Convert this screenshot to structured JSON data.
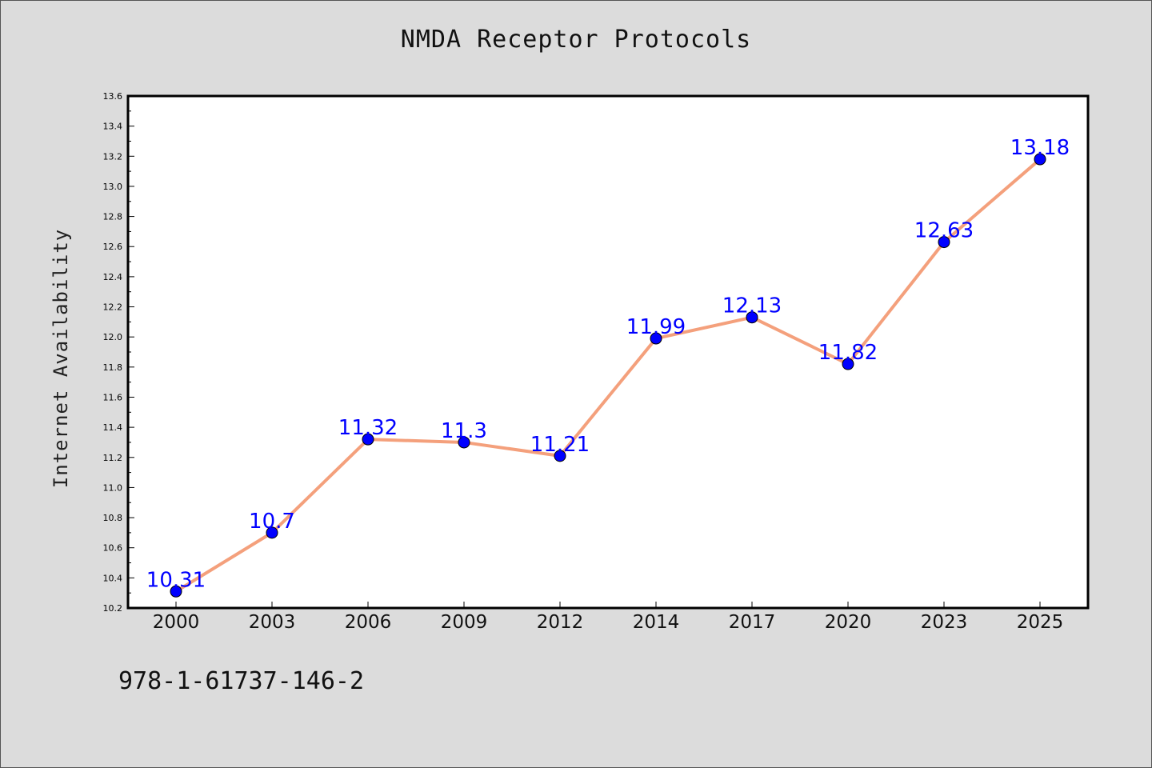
{
  "chart_data": {
    "type": "line",
    "title": "NMDA Receptor Protocols",
    "xlabel": "",
    "ylabel": "Internet Availability",
    "categories": [
      "2000",
      "2003",
      "2006",
      "2009",
      "2012",
      "2014",
      "2017",
      "2020",
      "2023",
      "2025"
    ],
    "series": [
      {
        "values": [
          10.31,
          10.7,
          11.32,
          11.3,
          11.21,
          11.99,
          12.13,
          11.82,
          12.63,
          13.18
        ]
      }
    ],
    "data_labels": [
      "10.31",
      "10.7",
      "11.32",
      "11.3",
      "11.21",
      "11.99",
      "12.13",
      "11.82",
      "12.63",
      "13.18"
    ],
    "ylim": [
      10.2,
      13.6
    ],
    "yticks": [
      "10.2",
      "10.4",
      "10.6",
      "10.8",
      "11.0",
      "11.2",
      "11.4",
      "11.6",
      "11.8",
      "12.0",
      "12.2",
      "12.4",
      "12.6",
      "12.8",
      "13.0",
      "13.2",
      "13.4",
      "13.6"
    ],
    "grid": false,
    "line_color": "#f4a07c",
    "marker_color": "#0000ff",
    "label_color": "#0000ff"
  },
  "footer": {
    "code": "978-1-61737-146-2"
  }
}
